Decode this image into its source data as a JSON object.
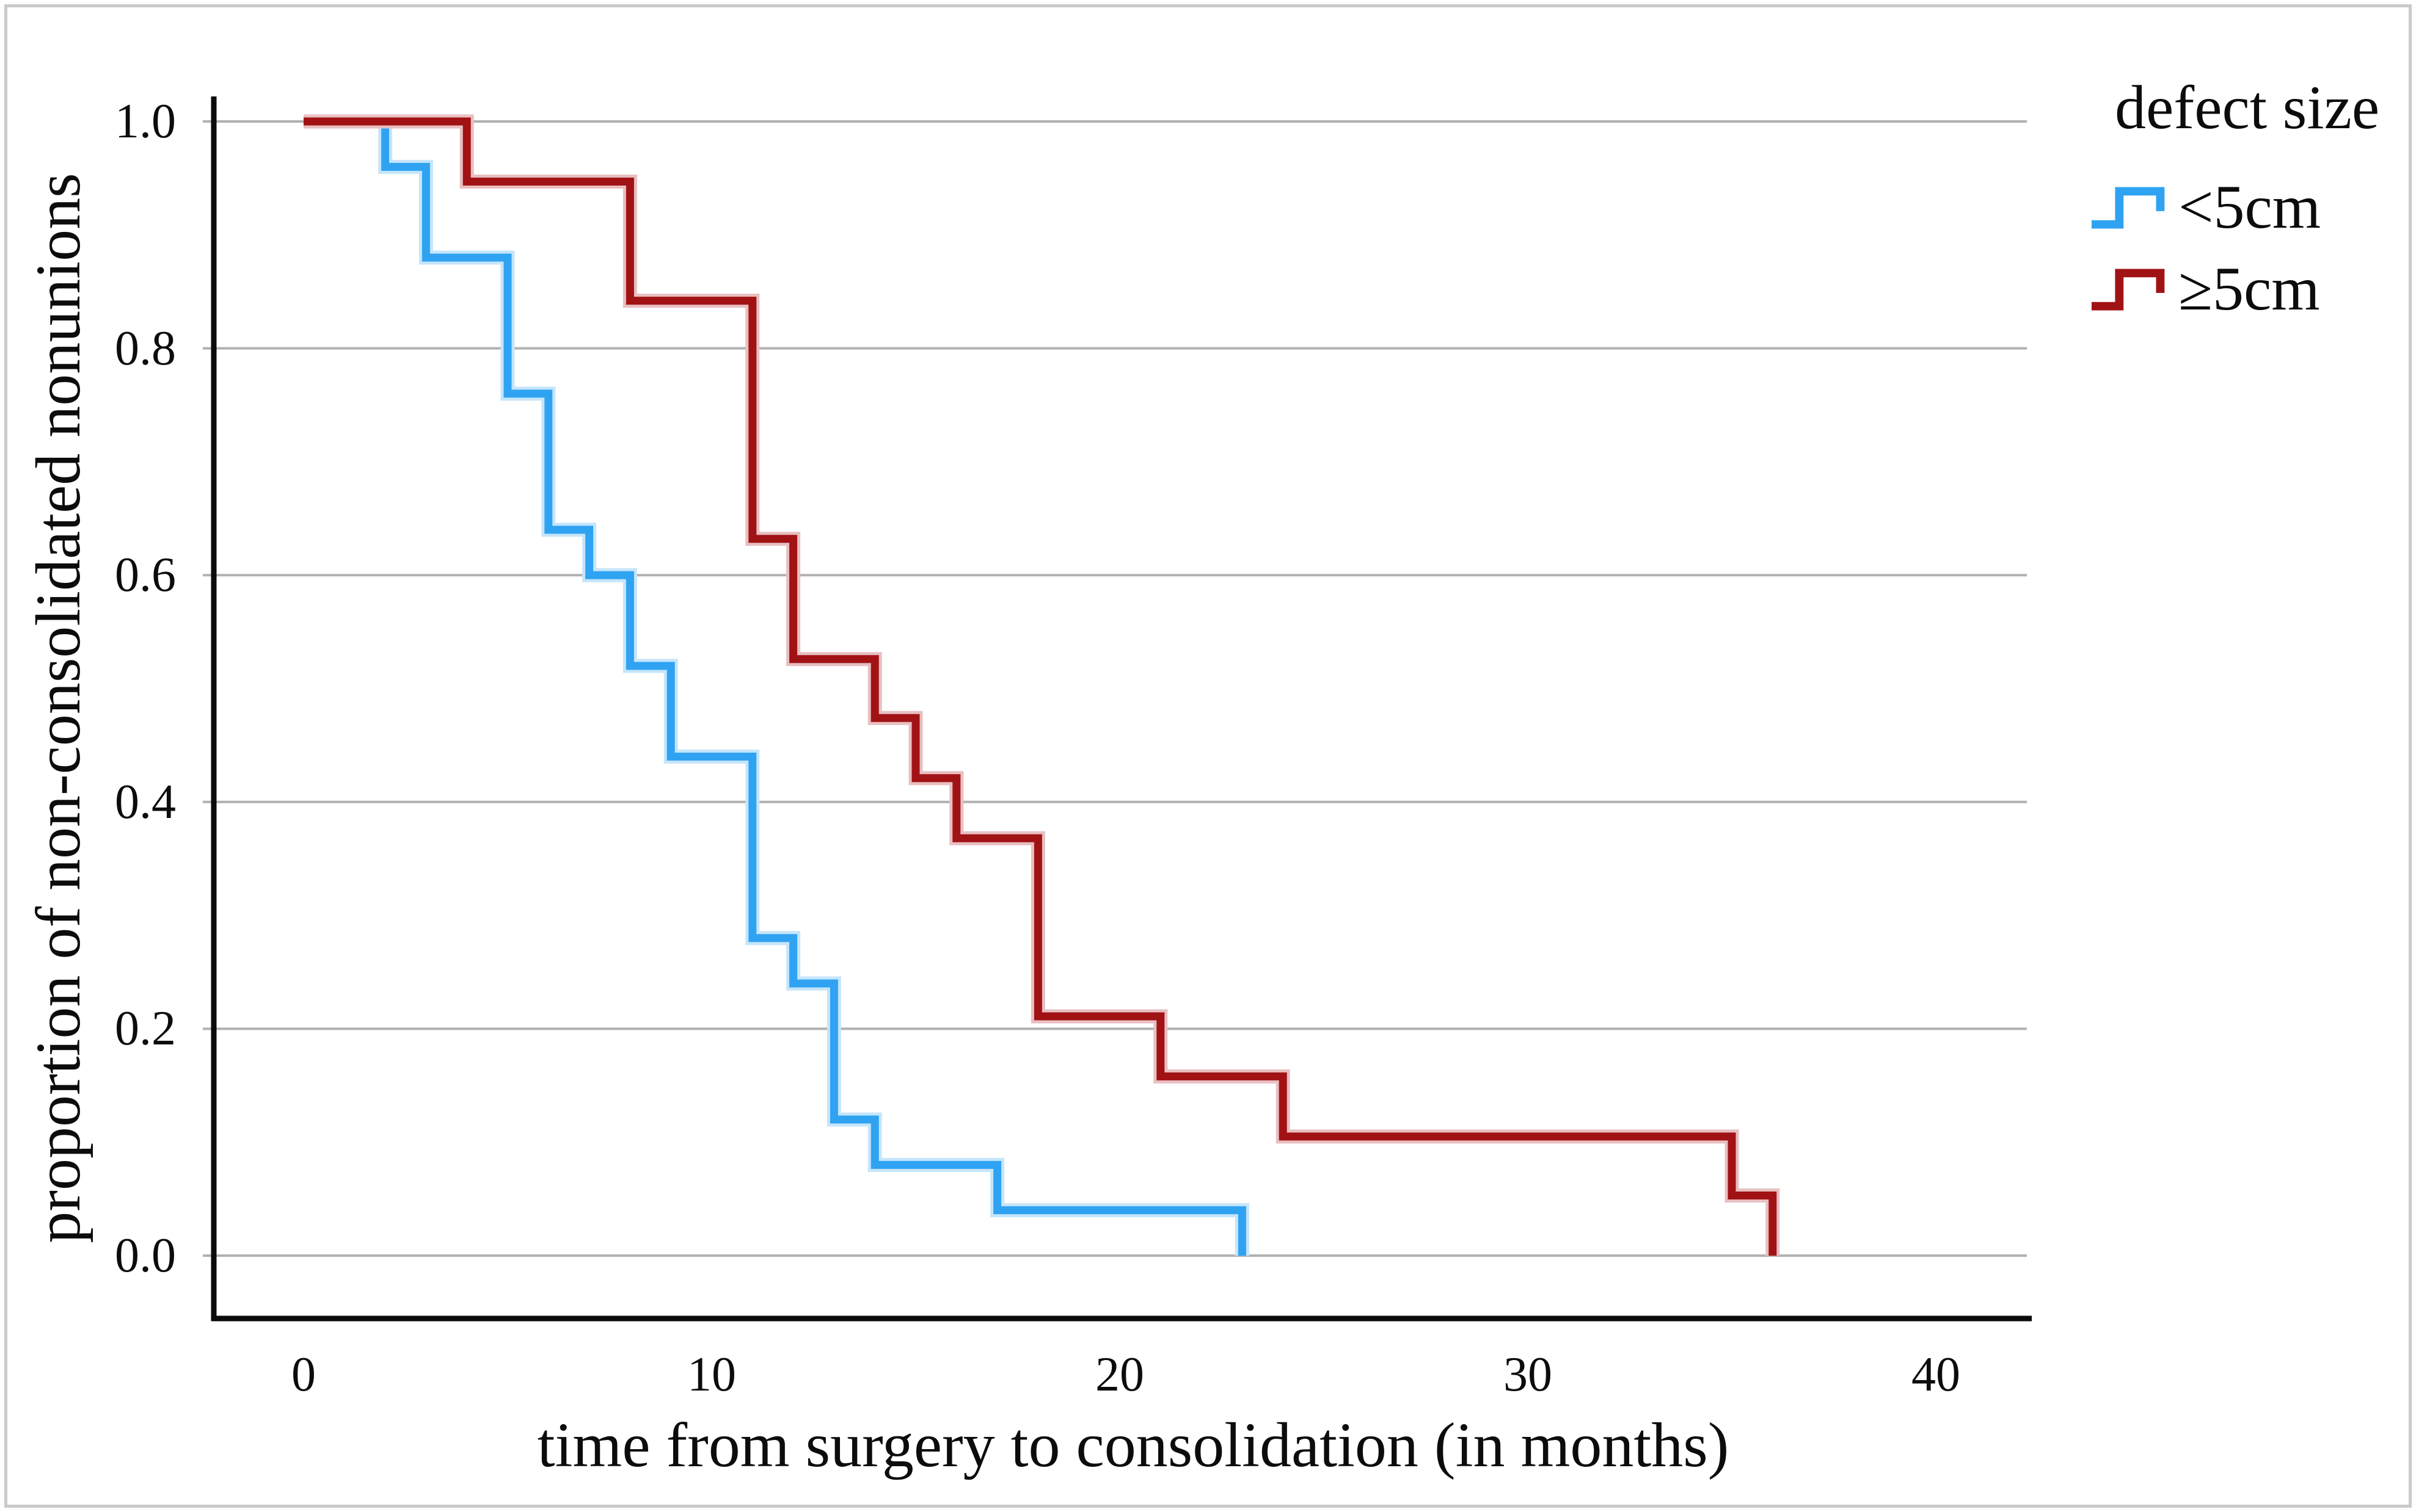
{
  "figure": {
    "x_axis": {
      "title": "time from surgery to consolidation (in months)"
    },
    "y_axis": {
      "title": "proportion of non-consolidated nonunions"
    },
    "legend": {
      "title": "defect size"
    }
  },
  "chart_data": {
    "type": "line",
    "subtype": "kaplan-meier-step",
    "title": "",
    "xlabel": "time from surgery to consolidation (in months)",
    "ylabel": "proportion of non-consolidated nonunions",
    "legend_title": "defect size",
    "legend_position": "top-right-outside",
    "grid": "horizontal-only",
    "xlim": [
      -2.2,
      42.3
    ],
    "ylim": [
      -0.055,
      1.02
    ],
    "x_ticks": [
      0,
      10,
      20,
      30,
      40
    ],
    "y_ticks": [
      1.0,
      0.8,
      0.6,
      0.4,
      0.2,
      0.0
    ],
    "series": [
      {
        "key": "lt5cm",
        "name": "<5cm",
        "color": "#2fa3f2",
        "halo": "#c5e5fb",
        "steps_as_time_and_proportion": [
          [
            0,
            1.0
          ],
          [
            2,
            0.96
          ],
          [
            3,
            0.88
          ],
          [
            5,
            0.76
          ],
          [
            6,
            0.64
          ],
          [
            7,
            0.6
          ],
          [
            8,
            0.52
          ],
          [
            9,
            0.44
          ],
          [
            11,
            0.28
          ],
          [
            12,
            0.24
          ],
          [
            13,
            0.12
          ],
          [
            14,
            0.08
          ],
          [
            17,
            0.04
          ],
          [
            23,
            0.0
          ]
        ]
      },
      {
        "key": "ge5cm",
        "name": "≥5cm",
        "color": "#a11215",
        "halo": "#e8bfc1",
        "steps_as_time_and_proportion": [
          [
            0,
            1.0
          ],
          [
            4,
            0.947
          ],
          [
            8,
            0.842
          ],
          [
            11,
            0.632
          ],
          [
            12,
            0.526
          ],
          [
            14,
            0.474
          ],
          [
            15,
            0.421
          ],
          [
            16,
            0.368
          ],
          [
            18,
            0.211
          ],
          [
            21,
            0.158
          ],
          [
            24,
            0.105
          ],
          [
            35,
            0.053
          ],
          [
            36,
            0.0
          ]
        ]
      }
    ]
  },
  "colors": {
    "gridline": "#b1b1b1",
    "axis": "#0b0b0b",
    "text": "#0c0c0c",
    "border": "#cacaca",
    "background": "#ffffff"
  }
}
